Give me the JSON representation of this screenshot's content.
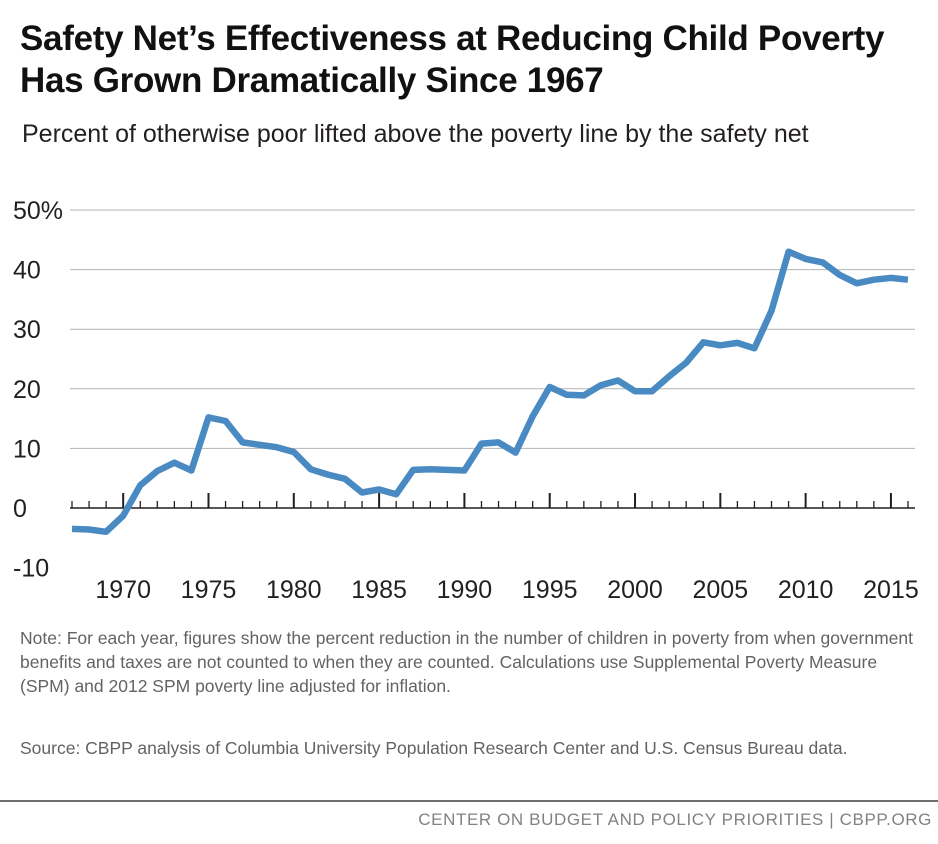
{
  "title": "Safety Net’s Effectiveness at Reducing Child Poverty Has Grown Dramatically Since 1967",
  "subtitle": "Percent of otherwise poor lifted above the poverty line by the safety net",
  "note": "Note: For each year, figures show the percent reduction in the number of children in poverty from when government benefits and taxes are not counted to when they are counted. Calculations use Supplemental Poverty Measure (SPM) and 2012 SPM poverty line adjusted for inflation.",
  "source": "Source: CBPP analysis of Columbia University Population Research Center and U.S. Census Bureau data.",
  "footer": "CENTER ON BUDGET AND POLICY PRIORITIES | CBPP.ORG",
  "colors": {
    "line": "#4a8ac3",
    "grid": "#b3b3b3",
    "axis": "#231f20",
    "text": "#231f20"
  },
  "chart_data": {
    "type": "line",
    "ylim": [
      -10,
      50
    ],
    "yticks": [
      -10,
      0,
      10,
      20,
      30,
      40,
      50
    ],
    "ytick_labels": [
      "-10",
      "0",
      "10",
      "20",
      "30",
      "40",
      "50%"
    ],
    "xlim": [
      1967,
      2016
    ],
    "xticks": [
      1970,
      1975,
      1980,
      1985,
      1990,
      1995,
      2000,
      2005,
      2010,
      2015
    ],
    "xtick_labels": [
      "1970",
      "1975",
      "1980",
      "1985",
      "1990",
      "1995",
      "2000",
      "2005",
      "2010",
      "2015"
    ],
    "grid": true,
    "series": [
      {
        "x": [
          1967,
          1968,
          1969,
          1970,
          1971,
          1972,
          1973,
          1974,
          1975,
          1976,
          1977,
          1978,
          1979,
          1980,
          1981,
          1982,
          1983,
          1984,
          1985,
          1986,
          1987,
          1988,
          1989,
          1990,
          1991,
          1992,
          1993,
          1994,
          1995,
          1996,
          1997,
          1998,
          1999,
          2000,
          2001,
          2002,
          2003,
          2004,
          2005,
          2006,
          2007,
          2008,
          2009,
          2010,
          2011,
          2012,
          2013,
          2014,
          2015,
          2016
        ],
        "values": [
          -3.5,
          -3.6,
          -4,
          -1.3,
          3.8,
          6.2,
          7.6,
          6.3,
          15.2,
          14.6,
          11.0,
          10.6,
          10.2,
          9.4,
          6.5,
          5.6,
          4.9,
          2.6,
          3.1,
          2.3,
          6.4,
          6.5,
          6.4,
          6.3,
          10.8,
          11.0,
          9.3,
          15.4,
          20.3,
          19.0,
          18.9,
          20.6,
          21.4,
          19.6,
          19.6,
          22.1,
          24.4,
          27.8,
          27.3,
          27.7,
          26.8,
          33.1,
          43.0,
          41.8,
          41.2,
          39.1,
          37.7,
          38.3,
          38.6,
          38.3
        ]
      }
    ]
  }
}
